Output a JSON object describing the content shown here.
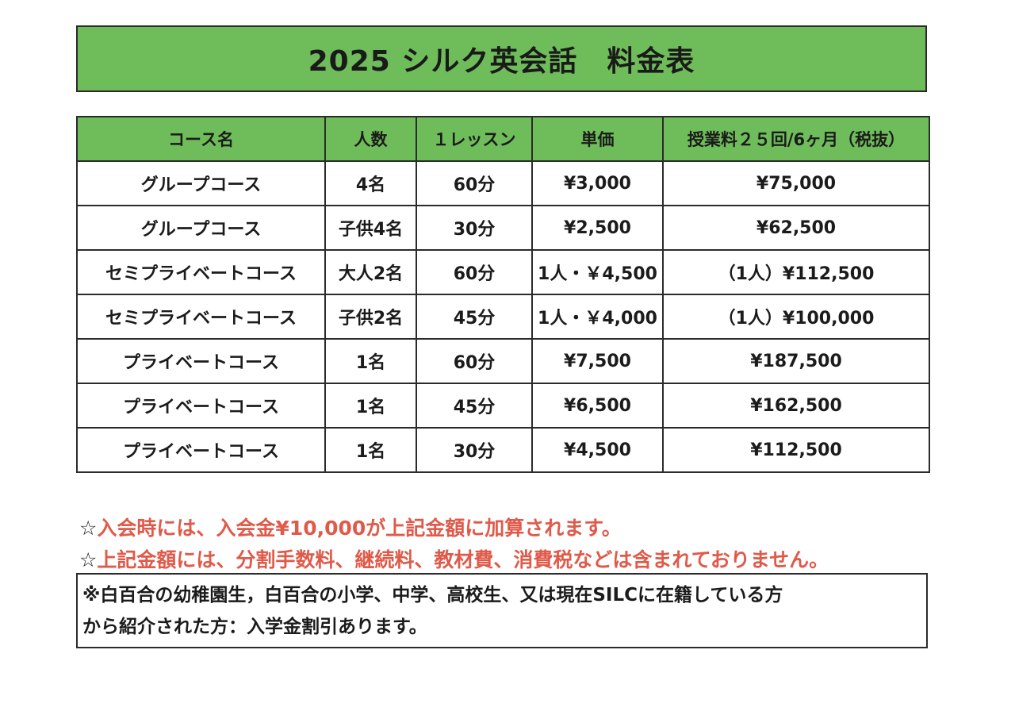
{
  "title": "2025 シルク英会話　料金表",
  "table": {
    "headers": [
      "コース名",
      "人数",
      "１レッスン",
      "単価",
      "授業料２５回/6ヶ月（税抜）"
    ],
    "rows": [
      [
        "グループコース",
        "4名",
        "60分",
        "¥3,000",
        "¥75,000"
      ],
      [
        "グループコース",
        "子供4名",
        "30分",
        "¥2,500",
        "¥62,500"
      ],
      [
        "セミプライベートコース",
        "大人2名",
        "60分",
        "1人・￥4,500",
        "（1人）¥112,500"
      ],
      [
        "セミプライベートコース",
        "子供2名",
        "45分",
        "1人・￥4,000",
        "（1人）¥100,000"
      ],
      [
        "プライベートコース",
        "1名",
        "60分",
        "¥7,500",
        "¥187,500"
      ],
      [
        "プライベートコース",
        "1名",
        "45分",
        "¥6,500",
        "¥162,500"
      ],
      [
        "プライベートコース",
        "1名",
        "30分",
        "¥4,500",
        "¥112,500"
      ]
    ]
  },
  "notes": {
    "star_symbol": "☆",
    "note1": "入会時には、入会金¥10,000が上記金額に加算されます。",
    "note2": "上記金額には、分割手数料、継続料、教材費、消費税などは含まれておりません。"
  },
  "info": {
    "line1": "※白百合の幼稚園生，白百合の小学、中学、高校生、又は現在SILCに在籍している方",
    "line2": "から紹介された方：入学金割引あります。"
  },
  "colors": {
    "header_green": "#6fbd5a",
    "note_red": "#e05a4a",
    "border": "#2b2b2b"
  }
}
